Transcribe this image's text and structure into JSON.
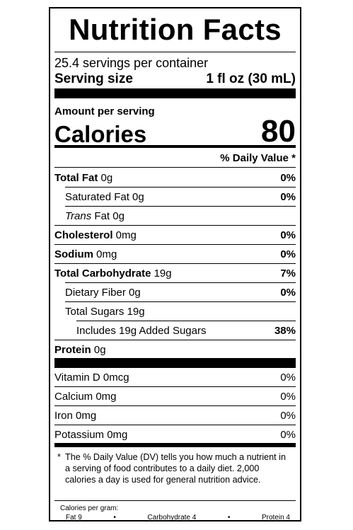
{
  "title": "Nutrition Facts",
  "servings_per_container": "25.4 servings per container",
  "serving_size": {
    "label": "Serving size",
    "value": "1 fl oz (30 mL)"
  },
  "amount_per_serving": "Amount per serving",
  "calories": {
    "label": "Calories",
    "value": "80"
  },
  "daily_value_header": "% Daily Value *",
  "nutrients": [
    {
      "name": "Total Fat",
      "amount": " 0g",
      "dv": "0%"
    },
    {
      "name": "Saturated Fat 0g",
      "dv": "0%"
    },
    {
      "name_italic": "Trans",
      "name_rest": " Fat 0g",
      "dv": ""
    },
    {
      "name": "Cholesterol",
      "amount": " 0mg",
      "dv": "0%"
    },
    {
      "name": "Sodium",
      "amount": " 0mg",
      "dv": "0%"
    },
    {
      "name": "Total Carbohydrate",
      "amount": " 19g",
      "dv": "7%"
    },
    {
      "name": "Dietary Fiber 0g",
      "dv": "0%"
    },
    {
      "name": "Total Sugars 19g",
      "dv": ""
    },
    {
      "name": "Includes 19g Added Sugars",
      "dv": "38%"
    },
    {
      "name": "Protein",
      "amount": " 0g",
      "dv": ""
    }
  ],
  "vitamins": [
    {
      "name": "Vitamin D 0mcg",
      "dv": "0%"
    },
    {
      "name": "Calcium 0mg",
      "dv": "0%"
    },
    {
      "name": "Iron 0mg",
      "dv": "0%"
    },
    {
      "name": "Potassium 0mg",
      "dv": "0%"
    }
  ],
  "footnote": {
    "star": "*",
    "text": "The % Daily Value (DV) tells you how much a nutrient in a serving of food contributes to a daily diet. 2,000 calories a day is used for general nutrition advice."
  },
  "calories_per_gram": {
    "label": "Calories per gram:",
    "fat": "Fat 9",
    "bullet": "•",
    "carbohydrate": "Carbohydrate 4",
    "protein": "Protein 4"
  }
}
